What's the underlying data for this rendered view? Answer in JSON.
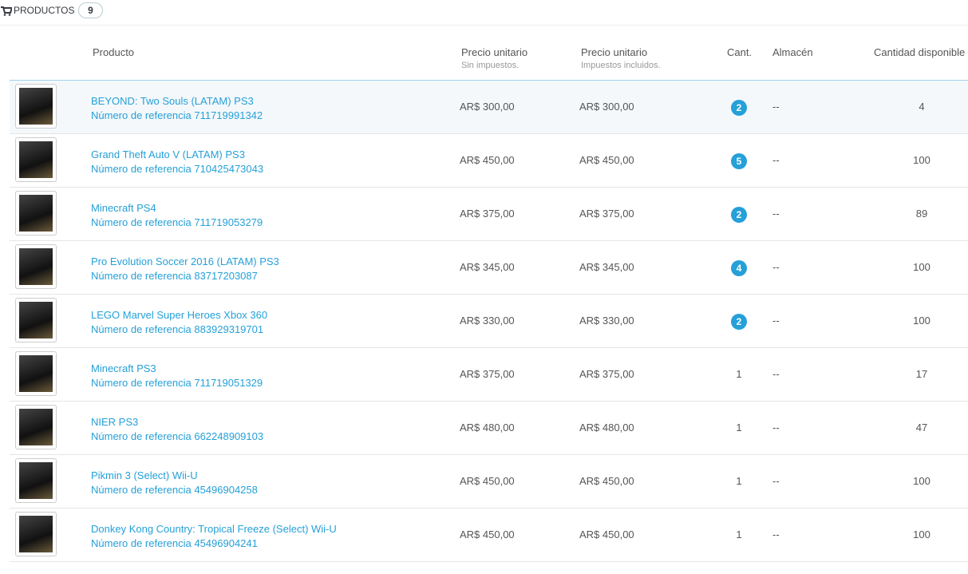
{
  "header": {
    "title": "PRODUCTOS",
    "count": "9"
  },
  "table": {
    "columns": [
      {
        "label": "Producto"
      },
      {
        "label": "Precio unitario",
        "sublabel": "Sin impuestos."
      },
      {
        "label": "Precio unitario",
        "sublabel": "Impuestos incluidos."
      },
      {
        "label": "Cant."
      },
      {
        "label": "Almacén"
      },
      {
        "label": "Cantidad disponible"
      }
    ],
    "rows": [
      {
        "name": "BEYOND: Two Souls (LATAM) PS3",
        "reference": "Número de referencia 711719991342",
        "price_excl": "AR$ 300,00",
        "price_incl": "AR$ 300,00",
        "quantity": 2,
        "warehouse": "--",
        "available": 4
      },
      {
        "name": "Grand Theft Auto V (LATAM) PS3",
        "reference": "Número de referencia 710425473043",
        "price_excl": "AR$ 450,00",
        "price_incl": "AR$ 450,00",
        "quantity": 5,
        "warehouse": "--",
        "available": 100
      },
      {
        "name": "Minecraft PS4",
        "reference": "Número de referencia 711719053279",
        "price_excl": "AR$ 375,00",
        "price_incl": "AR$ 375,00",
        "quantity": 2,
        "warehouse": "--",
        "available": 89
      },
      {
        "name": "Pro Evolution Soccer 2016 (LATAM) PS3",
        "reference": "Número de referencia 83717203087",
        "price_excl": "AR$ 345,00",
        "price_incl": "AR$ 345,00",
        "quantity": 4,
        "warehouse": "--",
        "available": 100
      },
      {
        "name": "LEGO Marvel Super Heroes Xbox 360",
        "reference": "Número de referencia 883929319701",
        "price_excl": "AR$ 330,00",
        "price_incl": "AR$ 330,00",
        "quantity": 2,
        "warehouse": "--",
        "available": 100
      },
      {
        "name": "Minecraft PS3",
        "reference": "Número de referencia 711719051329",
        "price_excl": "AR$ 375,00",
        "price_incl": "AR$ 375,00",
        "quantity": 1,
        "warehouse": "--",
        "available": 17
      },
      {
        "name": "NIER PS3",
        "reference": "Número de referencia 662248909103",
        "price_excl": "AR$ 480,00",
        "price_incl": "AR$ 480,00",
        "quantity": 1,
        "warehouse": "--",
        "available": 47
      },
      {
        "name": "Pikmin 3 (Select) Wii-U",
        "reference": "Número de referencia 45496904258",
        "price_excl": "AR$ 450,00",
        "price_incl": "AR$ 450,00",
        "quantity": 1,
        "warehouse": "--",
        "available": 100
      },
      {
        "name": "Donkey Kong Country: Tropical Freeze (Select) Wii-U",
        "reference": "Número de referencia 45496904241",
        "price_excl": "AR$ 450,00",
        "price_incl": "AR$ 450,00",
        "quantity": 1,
        "warehouse": "--",
        "available": 100
      }
    ]
  }
}
